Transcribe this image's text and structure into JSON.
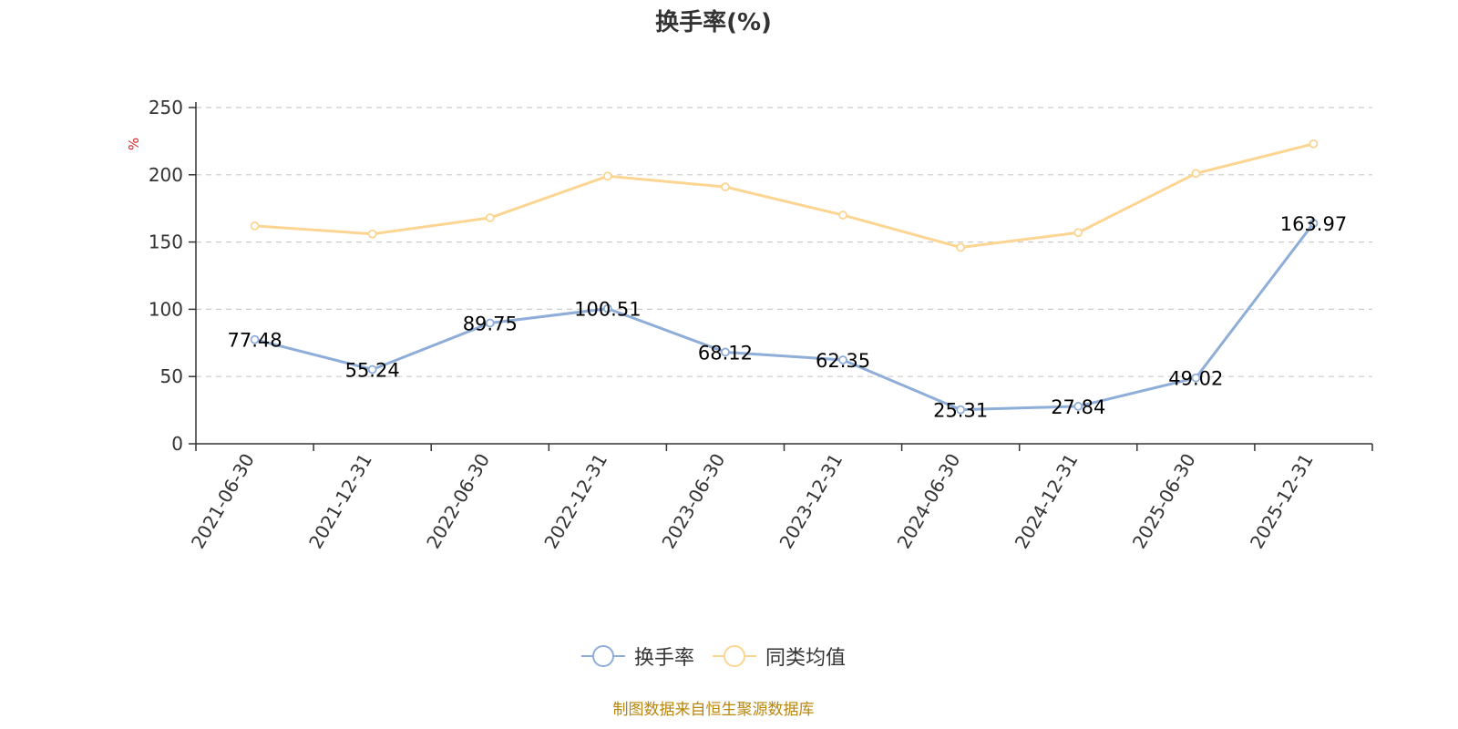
{
  "chart_data": {
    "type": "line",
    "title": "换手率(%)",
    "ylabel": "%",
    "xlabel": "",
    "ylim": [
      0,
      250
    ],
    "yticks": [
      0,
      50,
      100,
      150,
      200,
      250
    ],
    "grid": true,
    "legend_position": "bottom",
    "categories": [
      "2021-06-30",
      "2021-12-31",
      "2022-06-30",
      "2022-12-31",
      "2023-06-30",
      "2023-12-31",
      "2024-06-30",
      "2024-12-31",
      "2025-06-30",
      "2025-12-31"
    ],
    "series": [
      {
        "name": "换手率",
        "color": "#8eadd8",
        "values": [
          77.48,
          55.24,
          89.75,
          100.51,
          68.12,
          62.35,
          25.31,
          27.84,
          49.02,
          163.97
        ],
        "labels": [
          "77.48",
          "55.24",
          "89.75",
          "100.51",
          "68.12",
          "62.35",
          "25.31",
          "27.84",
          "49.02",
          "163.97"
        ],
        "show_labels": true
      },
      {
        "name": "同类均值",
        "color": "#fcd592",
        "values": [
          162,
          156,
          168,
          199,
          191,
          170,
          146,
          157,
          201,
          223
        ],
        "show_labels": false
      }
    ],
    "source": "制图数据来自恒生聚源数据库"
  }
}
